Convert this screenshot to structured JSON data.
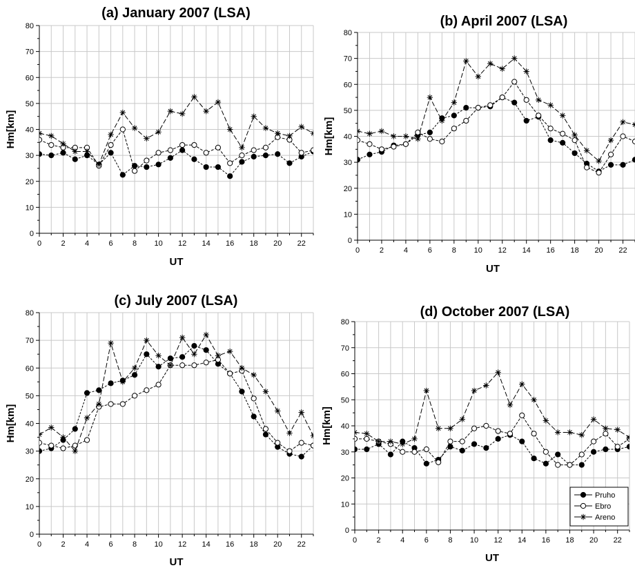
{
  "colors": {
    "line": "#000000",
    "grid": "#c8c8c8",
    "background": "#ffffff"
  },
  "chart_data": [
    {
      "type": "line",
      "title": "(a)   January 2007 (LSA)",
      "xlabel": "UT",
      "ylabel": "Hm[km]",
      "xlim": [
        0,
        23
      ],
      "ylim": [
        0,
        80
      ],
      "xticks": [
        "0",
        "2",
        "4",
        "6",
        "8",
        "10",
        "12",
        "14",
        "16",
        "18",
        "20",
        "22"
      ],
      "yticks": [
        "0",
        "10",
        "20",
        "30",
        "40",
        "50",
        "60",
        "70",
        "80"
      ],
      "grid": true,
      "series": [
        {
          "name": "Pruho",
          "marker": "filled-circle",
          "values": [
            30.5,
            30,
            31,
            28.5,
            30,
            26.5,
            31,
            22.5,
            26,
            25.5,
            26.5,
            29,
            32,
            28.5,
            25.5,
            25.5,
            22,
            27.5,
            29.5,
            30,
            30.5,
            27,
            29.5,
            31.5
          ]
        },
        {
          "name": "Ebro",
          "marker": "open-circle",
          "values": [
            36,
            34,
            33,
            33,
            33,
            26,
            34,
            40,
            24,
            28,
            31,
            32,
            34,
            34,
            31,
            33,
            27,
            30,
            32,
            33,
            37,
            36,
            31,
            32
          ]
        },
        {
          "name": "Areno",
          "marker": "asterisk",
          "values": [
            38.5,
            37.5,
            34.5,
            31.5,
            31.5,
            26.5,
            38,
            46.5,
            40.5,
            36.5,
            39,
            47,
            46,
            52.5,
            47,
            50.5,
            40,
            33,
            45,
            40.5,
            38.5,
            37.5,
            41,
            38.5
          ]
        }
      ]
    },
    {
      "type": "line",
      "title": "(b)   April 2007 (LSA)",
      "xlabel": "UT",
      "ylabel": "Hm[km]",
      "xlim": [
        0,
        23
      ],
      "ylim": [
        0,
        80
      ],
      "xticks": [
        "0",
        "2",
        "4",
        "6",
        "8",
        "10",
        "12",
        "14",
        "16",
        "18",
        "20",
        "22"
      ],
      "yticks": [
        "0",
        "10",
        "20",
        "30",
        "40",
        "50",
        "60",
        "70",
        "80"
      ],
      "grid": true,
      "series": [
        {
          "name": "Pruho",
          "marker": "filled-circle",
          "values": [
            31,
            33,
            34,
            36.5,
            37,
            40.5,
            41.5,
            47,
            48,
            51,
            51,
            51.5,
            55,
            53,
            46,
            47.5,
            38.5,
            37.5,
            33.5,
            29.5,
            26.5,
            29,
            29,
            31
          ]
        },
        {
          "name": "Ebro",
          "marker": "open-circle",
          "values": [
            38.5,
            37,
            35,
            36,
            37,
            41.5,
            39,
            38,
            43,
            46,
            51,
            52,
            55,
            61,
            54,
            48,
            43,
            41,
            38.5,
            28,
            26,
            33,
            40,
            38
          ]
        },
        {
          "name": "Areno",
          "marker": "asterisk",
          "values": [
            42,
            41,
            42,
            40,
            40,
            39,
            55,
            46,
            53,
            69,
            63,
            68,
            66,
            70,
            65,
            54,
            52,
            48,
            40.5,
            34.5,
            30.5,
            38.5,
            45.5,
            44.5
          ]
        }
      ]
    },
    {
      "type": "line",
      "title": "(c)   July 2007 (LSA)",
      "xlabel": "UT",
      "ylabel": "Hm[km]",
      "xlim": [
        0,
        23
      ],
      "ylim": [
        0,
        80
      ],
      "xticks": [
        "0",
        "2",
        "4",
        "6",
        "8",
        "10",
        "12",
        "14",
        "16",
        "18",
        "20",
        "22"
      ],
      "yticks": [
        "0",
        "10",
        "20",
        "30",
        "40",
        "50",
        "60",
        "70",
        "80"
      ],
      "grid": true,
      "series": [
        {
          "name": "Pruho",
          "marker": "filled-circle",
          "values": [
            30,
            31,
            34,
            38,
            51,
            52,
            54.5,
            55.5,
            57.5,
            65,
            60.5,
            63.5,
            64,
            68,
            66.5,
            61.5,
            58,
            51.5,
            42.5,
            36,
            31.5,
            29,
            28,
            32
          ]
        },
        {
          "name": "Ebro",
          "marker": "open-circle",
          "values": [
            33,
            32,
            31,
            32,
            34,
            46,
            47,
            47,
            50,
            52,
            54,
            61,
            61,
            61,
            62,
            63,
            58,
            59,
            49,
            38,
            33,
            30,
            33,
            32
          ]
        },
        {
          "name": "Areno",
          "marker": "asterisk",
          "values": [
            36,
            38.5,
            35,
            30,
            42,
            47,
            69,
            55,
            60,
            70,
            64.5,
            61,
            71,
            65,
            72,
            64.5,
            66,
            60,
            57.5,
            51.5,
            44.5,
            36.5,
            44,
            35.5
          ]
        }
      ]
    },
    {
      "type": "line",
      "title": "(d) October 2007 (LSA)",
      "xlabel": "UT",
      "ylabel": "Hm[km]",
      "xlim": [
        0,
        23
      ],
      "ylim": [
        0,
        80
      ],
      "xticks": [
        "0",
        "2",
        "4",
        "6",
        "8",
        "10",
        "12",
        "14",
        "16",
        "18",
        "20",
        "22"
      ],
      "yticks": [
        "0",
        "10",
        "20",
        "30",
        "40",
        "50",
        "60",
        "70",
        "80"
      ],
      "grid": true,
      "legend": "bottom-right",
      "series": [
        {
          "name": "Pruho",
          "marker": "filled-circle",
          "values": [
            31,
            31,
            33,
            29,
            34,
            31.5,
            25.5,
            27,
            32,
            30.5,
            33,
            31.5,
            35,
            36.5,
            34,
            27.5,
            25.5,
            29,
            25,
            25,
            30,
            31,
            31,
            32
          ]
        },
        {
          "name": "Ebro",
          "marker": "open-circle",
          "values": [
            35,
            35,
            34,
            33,
            30,
            30,
            31,
            26,
            34,
            34,
            39,
            40,
            38,
            37,
            44,
            37,
            30,
            25,
            25,
            29,
            34,
            37,
            32,
            35
          ]
        },
        {
          "name": "Areno",
          "marker": "asterisk",
          "values": [
            37.5,
            37,
            34,
            34,
            33,
            35,
            53.5,
            39,
            39,
            42.5,
            53.5,
            55.5,
            60.5,
            48,
            56,
            50,
            42,
            37.5,
            37.5,
            36.5,
            42.5,
            39,
            38.5,
            35.5
          ]
        }
      ]
    }
  ]
}
